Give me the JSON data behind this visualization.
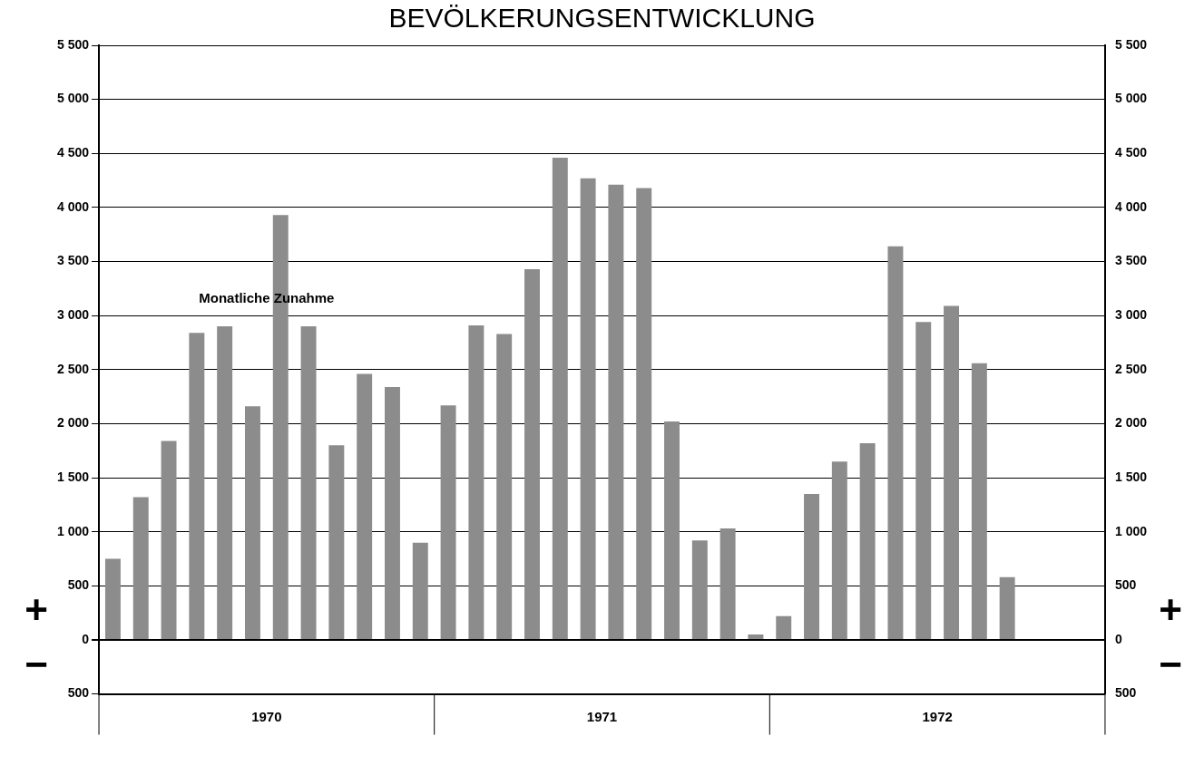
{
  "chart_data": {
    "type": "bar",
    "title": "BEVÖLKERUNGSENTWICKLUNG",
    "categories": [
      null,
      null,
      null,
      null,
      null,
      null,
      null,
      null,
      null,
      null,
      null,
      null,
      null,
      null,
      null,
      null,
      null,
      null,
      null,
      null,
      null,
      null,
      null,
      null,
      null,
      null,
      null,
      null,
      null,
      null,
      null,
      null,
      null,
      null,
      null,
      null
    ],
    "values": [
      750,
      1320,
      1840,
      2840,
      2900,
      2160,
      3930,
      2900,
      1800,
      2460,
      2340,
      900,
      2170,
      2910,
      2830,
      3430,
      4460,
      4270,
      4210,
      4180,
      2020,
      920,
      1030,
      50,
      220,
      1350,
      1650,
      1820,
      3640,
      2940,
      3090,
      2560,
      580,
      null,
      null,
      null
    ],
    "color": "#8c8c8c",
    "ylim": [
      -500,
      5500
    ],
    "yticks": [
      {
        "value": -500,
        "label": "500"
      },
      {
        "value": 0,
        "label": "0"
      },
      {
        "value": 500,
        "label": "500"
      },
      {
        "value": 1000,
        "label": "1 000"
      },
      {
        "value": 1500,
        "label": "1 500"
      },
      {
        "value": 2000,
        "label": "2 000"
      },
      {
        "value": 2500,
        "label": "2 500"
      },
      {
        "value": 3000,
        "label": "3 000"
      },
      {
        "value": 3500,
        "label": "3 500"
      },
      {
        "value": 4000,
        "label": "4 000"
      },
      {
        "value": 4500,
        "label": "4 500"
      },
      {
        "value": 5000,
        "label": "5 000"
      },
      {
        "value": 5500,
        "label": "5 500"
      }
    ],
    "y2lim": [
      -500,
      5500
    ],
    "y2ticks": [
      {
        "value": -500,
        "label": "500"
      },
      {
        "value": 0,
        "label": "0"
      },
      {
        "value": 500,
        "label": "500"
      },
      {
        "value": 1000,
        "label": "1 000"
      },
      {
        "value": 1500,
        "label": "1 500"
      },
      {
        "value": 2000,
        "label": "2 000"
      },
      {
        "value": 2500,
        "label": "2 500"
      },
      {
        "value": 3000,
        "label": "3 000"
      },
      {
        "value": 3500,
        "label": "3 500"
      },
      {
        "value": 4000,
        "label": "4 000"
      },
      {
        "value": 4500,
        "label": "4 500"
      },
      {
        "value": 5000,
        "label": "5 000"
      },
      {
        "value": 5500,
        "label": "5 500"
      }
    ],
    "grid": "y",
    "legend": false,
    "annotations": [
      "Monatliche Zunahme",
      "1970",
      "1971",
      "1972",
      "+",
      "−"
    ]
  }
}
